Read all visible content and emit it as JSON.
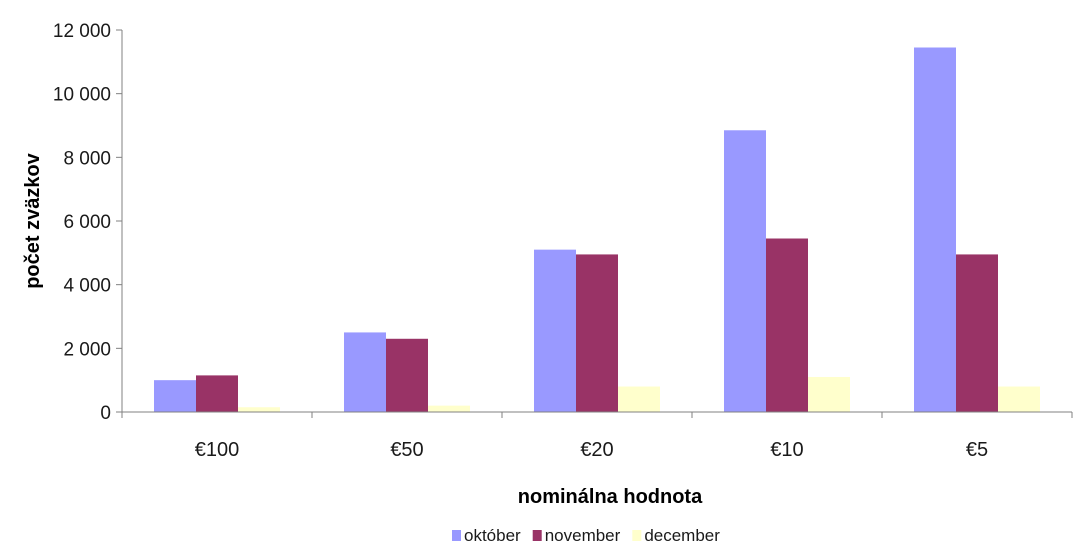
{
  "chart_data": {
    "type": "bar",
    "categories": [
      "€100",
      "€50",
      "€20",
      "€10",
      "€5"
    ],
    "series": [
      {
        "name": "október",
        "color": "#9999ff",
        "values": [
          1000,
          2500,
          5100,
          8850,
          11450
        ]
      },
      {
        "name": "november",
        "color": "#993366",
        "values": [
          1150,
          2300,
          4950,
          5450,
          4950
        ]
      },
      {
        "name": "december",
        "color": "#ffffcc",
        "values": [
          150,
          200,
          800,
          1100,
          800
        ]
      }
    ],
    "xlabel": "nominálna hodnota",
    "ylabel": "počet zväzkov",
    "ylim": [
      0,
      12000
    ],
    "yticks": [
      0,
      2000,
      4000,
      6000,
      8000,
      10000,
      12000
    ],
    "ytick_labels": [
      "0",
      "2 000",
      "4 000",
      "6 000",
      "8 000",
      "10 000",
      "12 000"
    ],
    "grid": false,
    "legend_position": "bottom"
  }
}
